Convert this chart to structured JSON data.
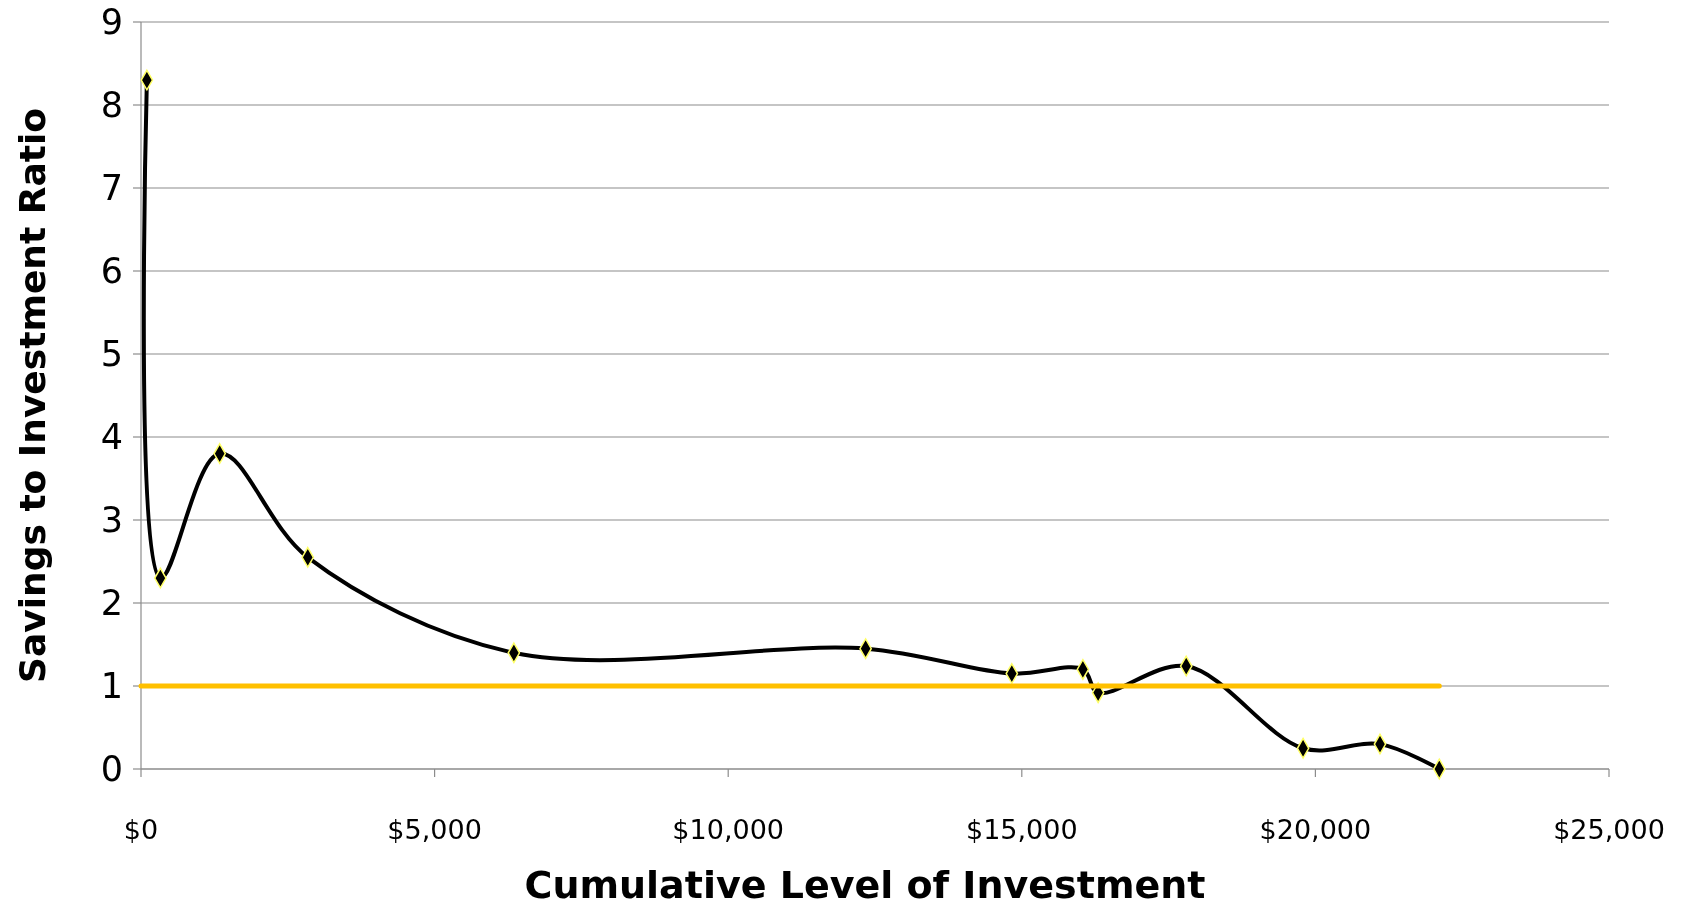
{
  "chart_data": {
    "type": "line",
    "xlabel": "Cumulative Level of Investment",
    "ylabel": "Savings to Investment Ratio",
    "xlim": [
      0,
      25000
    ],
    "xticks": [
      {
        "value": 0,
        "label": "$0"
      },
      {
        "value": 5000,
        "label": "$5,000"
      },
      {
        "value": 10000,
        "label": "$10,000"
      },
      {
        "value": 15000,
        "label": "$15,000"
      },
      {
        "value": 20000,
        "label": "$20,000"
      },
      {
        "value": 25000,
        "label": "$25,000"
      }
    ],
    "ylim": [
      0,
      9
    ],
    "yticks": [
      0,
      1,
      2,
      3,
      4,
      5,
      6,
      7,
      8,
      9
    ],
    "grid": "y",
    "series": [
      {
        "color": "#000000",
        "marker": "diamond",
        "x": [
          100,
          330,
          1340,
          2840,
          6350,
          12340,
          14830,
          16040,
          16300,
          17800,
          19790,
          21100,
          22110
        ],
        "values": [
          8.3,
          2.3,
          3.8,
          2.55,
          1.4,
          1.45,
          1.15,
          1.2,
          0.92,
          1.24,
          0.25,
          0.3,
          0
        ]
      },
      {
        "color": "#ffc000",
        "marker": "none",
        "x": [
          0,
          22110
        ],
        "values": [
          1,
          1
        ]
      }
    ]
  }
}
